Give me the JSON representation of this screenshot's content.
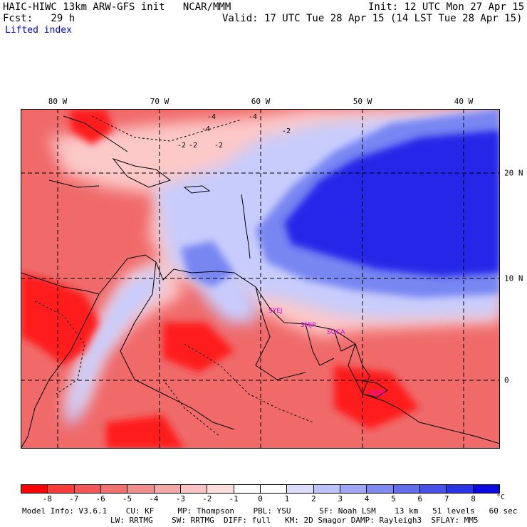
{
  "header": {
    "model_line": "HAIC-HIWC 13km ARW-GFS init   NCAR/MMM",
    "init_line": "Init: 12 UTC Mon 27 Apr 15",
    "fcst_line": "Fcst:   29 h",
    "valid_line": "Valid: 17 UTC Tue 28 Apr 15 (14 LST Tue 28 Apr 15)",
    "field_name": "Lifted index"
  },
  "map": {
    "lon_labels": [
      "80 W",
      "70 W",
      "60 W",
      "50 W",
      "40 W"
    ],
    "lat_labels": [
      "20 N",
      "10 N",
      "0"
    ],
    "stations": [
      "SYEJ",
      "SMJP",
      "SOCA",
      "SBBE"
    ],
    "contour_labels": [
      "-4",
      "-4",
      "-2",
      "-2",
      "-4",
      "-2",
      "-2"
    ],
    "colors": {
      "negative_strong": "#ff1a1a",
      "negative_mid": "#f06a6a",
      "negative_weak": "#fcc8c8",
      "neutral": "#ffffff",
      "positive_weak": "#c8ccfc",
      "positive_mid": "#7886f2",
      "positive_strong": "#2828e8",
      "land_outline": "#000000",
      "station": "#e000e0"
    }
  },
  "legend": {
    "ticks": [
      "-8",
      "-7",
      "-6",
      "-5",
      "-4",
      "-3",
      "-2",
      "-1",
      "0",
      "1",
      "2",
      "3",
      "4",
      "5",
      "6",
      "7",
      "8"
    ],
    "unit": "°C",
    "swatches": [
      "#ff0000",
      "#ff3a3a",
      "#f55757",
      "#f27070",
      "#f28d8d",
      "#f5a8a8",
      "#fac3c3",
      "#fcdede",
      "#ffffff",
      "#ffffff",
      "#dcdefc",
      "#bcc2fa",
      "#9ea6f5",
      "#7f8af2",
      "#626ded",
      "#4650ea",
      "#2a33e6",
      "#0a0ae0"
    ]
  },
  "footer": {
    "line1": "Model Info: V3.6.1    CU: KF     MP: Thompson    PBL: YSU      SF: Noah LSM    13 km   51 levels   60 sec",
    "line2": "LW: RRTMG    SW: RRTMG  DIFF: full   KM: 2D Smagor DAMP: Rayleigh3  SFLAY: MM5"
  }
}
